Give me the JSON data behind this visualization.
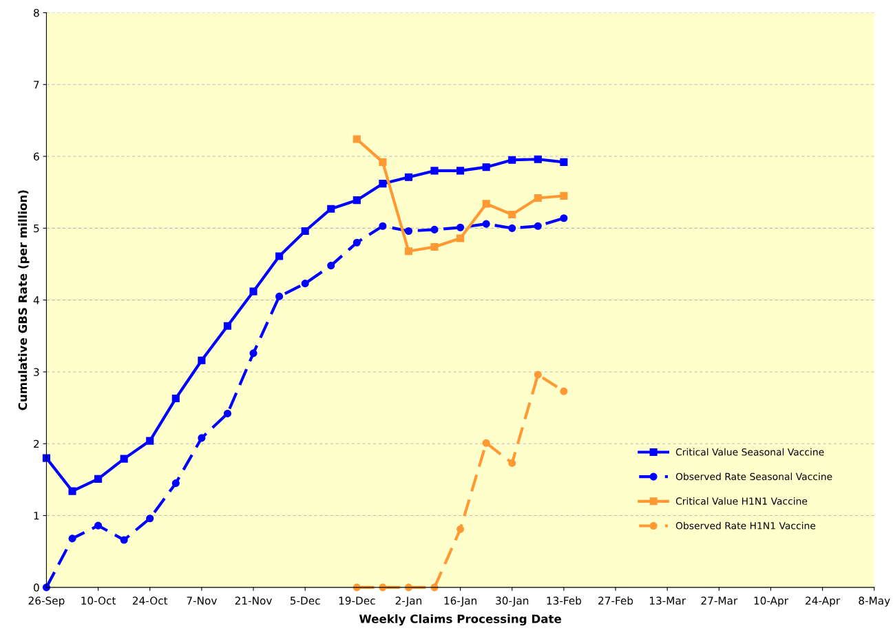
{
  "chart_data": {
    "type": "line",
    "xlabel": "Weekly Claims Processing Date",
    "ylabel": "Cumulative GBS Rate (per million)",
    "categories": [
      "26-Sep",
      null,
      "10-Oct",
      null,
      "24-Oct",
      null,
      "7-Nov",
      null,
      "21-Nov",
      null,
      "5-Dec",
      null,
      "19-Dec",
      null,
      "2-Jan",
      null,
      "16-Jan",
      null,
      "30-Jan",
      null,
      "13-Feb",
      null,
      "27-Feb",
      null,
      "13-Mar",
      null,
      "27-Mar",
      null,
      "10-Apr",
      null,
      "24-Apr",
      null,
      "8-May"
    ],
    "series": [
      {
        "name": "Critical Value Seasonal Vaccine",
        "color": "#0000ff",
        "marker": "square",
        "line_style": "solid",
        "values": [
          1.8,
          1.34,
          1.51,
          1.79,
          2.04,
          2.63,
          3.16,
          3.64,
          4.12,
          4.61,
          4.96,
          5.27,
          5.39,
          5.62,
          5.71,
          5.8,
          5.8,
          5.85,
          5.95,
          5.96,
          5.92,
          null,
          null,
          null,
          null,
          null,
          null,
          null,
          null,
          null,
          null,
          null,
          null
        ]
      },
      {
        "name": "Observed Rate Seasonal Vaccine",
        "color": "#0000ff",
        "marker": "circle",
        "line_style": "dashed",
        "values": [
          0,
          0.68,
          0.86,
          0.66,
          0.96,
          1.45,
          2.08,
          2.42,
          3.26,
          4.05,
          4.23,
          4.48,
          4.8,
          5.03,
          4.96,
          4.98,
          5.01,
          5.06,
          5.0,
          5.03,
          5.14,
          null,
          null,
          null,
          null,
          null,
          null,
          null,
          null,
          null,
          null,
          null,
          null
        ]
      },
      {
        "name": "Critical Value H1N1 Vaccine",
        "color": "#ff9933",
        "marker": "square",
        "line_style": "solid",
        "values": [
          null,
          null,
          null,
          null,
          null,
          null,
          null,
          null,
          null,
          null,
          null,
          null,
          6.24,
          5.92,
          4.68,
          4.74,
          4.86,
          5.34,
          5.19,
          5.42,
          5.45,
          null,
          null,
          null,
          null,
          null,
          null,
          null,
          null,
          null,
          null,
          null,
          null
        ]
      },
      {
        "name": "Observed Rate H1N1 Vaccine",
        "color": "#ff9933",
        "marker": "circle",
        "line_style": "dashed",
        "values": [
          null,
          null,
          null,
          null,
          null,
          null,
          null,
          null,
          null,
          null,
          null,
          null,
          0,
          0,
          0,
          0,
          0.81,
          2.01,
          1.73,
          2.96,
          2.73,
          null,
          null,
          null,
          null,
          null,
          null,
          null,
          null,
          null,
          null,
          null,
          null
        ]
      }
    ],
    "ylim": [
      0,
      8
    ],
    "yticks": [
      0,
      1,
      2,
      3,
      4,
      5,
      6,
      7,
      8
    ],
    "grid": "y",
    "legend": "right"
  }
}
